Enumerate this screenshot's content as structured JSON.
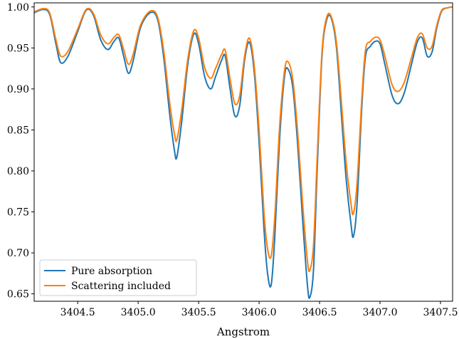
{
  "chart_data": {
    "type": "line",
    "title": "",
    "xlabel": "Angstrom",
    "ylabel": "",
    "xlim": [
      3404.14,
      3407.6
    ],
    "ylim": [
      0.641,
      1.005
    ],
    "xticks": [
      3404.5,
      3405.0,
      3405.5,
      3406.0,
      3406.5,
      3407.0,
      3407.5
    ],
    "xtick_labels": [
      "3404.5",
      "3405.0",
      "3405.5",
      "3406.0",
      "3406.5",
      "3407.0",
      "3407.5"
    ],
    "yticks": [
      0.65,
      0.7,
      0.75,
      0.8,
      0.85,
      0.9,
      0.95,
      1.0
    ],
    "ytick_labels": [
      "0.65",
      "0.70",
      "0.75",
      "0.80",
      "0.85",
      "0.90",
      "0.95",
      "1.00"
    ],
    "grid": false,
    "legend_position": "lower-left",
    "series": [
      {
        "name": "Pure absorption",
        "color": "#1f77b4",
        "x": [
          3404.14,
          3404.22,
          3404.27,
          3404.32,
          3404.36,
          3404.42,
          3404.5,
          3404.57,
          3404.63,
          3404.69,
          3404.75,
          3404.8,
          3404.84,
          3404.88,
          3404.92,
          3404.96,
          3405.02,
          3405.1,
          3405.16,
          3405.21,
          3405.26,
          3405.3,
          3405.32,
          3405.36,
          3405.41,
          3405.46,
          3405.5,
          3405.55,
          3405.6,
          3405.64,
          3405.69,
          3405.72,
          3405.76,
          3405.8,
          3405.84,
          3405.88,
          3405.92,
          3405.96,
          3406.0,
          3406.04,
          3406.07,
          3406.1,
          3406.13,
          3406.17,
          3406.21,
          3406.24,
          3406.28,
          3406.32,
          3406.36,
          3406.4,
          3406.42,
          3406.45,
          3406.48,
          3406.52,
          3406.56,
          3406.6,
          3406.64,
          3406.68,
          3406.72,
          3406.76,
          3406.78,
          3406.81,
          3406.85,
          3406.88,
          3406.92,
          3406.96,
          3407.0,
          3407.04,
          3407.1,
          3407.15,
          3407.2,
          3407.26,
          3407.31,
          3407.35,
          3407.39,
          3407.43,
          3407.47,
          3407.51,
          3407.56,
          3407.6
        ],
        "y": [
          0.993,
          0.997,
          0.99,
          0.955,
          0.932,
          0.94,
          0.97,
          0.996,
          0.99,
          0.96,
          0.948,
          0.958,
          0.962,
          0.94,
          0.919,
          0.935,
          0.975,
          0.993,
          0.985,
          0.94,
          0.87,
          0.825,
          0.817,
          0.86,
          0.93,
          0.967,
          0.955,
          0.915,
          0.9,
          0.915,
          0.935,
          0.94,
          0.9,
          0.867,
          0.88,
          0.935,
          0.957,
          0.92,
          0.835,
          0.73,
          0.675,
          0.661,
          0.72,
          0.84,
          0.915,
          0.924,
          0.9,
          0.83,
          0.74,
          0.66,
          0.646,
          0.68,
          0.8,
          0.94,
          0.985,
          0.985,
          0.95,
          0.87,
          0.79,
          0.735,
          0.72,
          0.76,
          0.88,
          0.94,
          0.952,
          0.958,
          0.955,
          0.93,
          0.892,
          0.882,
          0.895,
          0.93,
          0.958,
          0.962,
          0.94,
          0.945,
          0.975,
          0.995,
          0.999,
          1.0
        ]
      },
      {
        "name": "Scattering included",
        "color": "#ff7f0e",
        "x": [
          3404.14,
          3404.22,
          3404.27,
          3404.32,
          3404.36,
          3404.42,
          3404.5,
          3404.57,
          3404.63,
          3404.69,
          3404.75,
          3404.8,
          3404.84,
          3404.88,
          3404.92,
          3404.96,
          3405.02,
          3405.1,
          3405.16,
          3405.21,
          3405.26,
          3405.3,
          3405.32,
          3405.36,
          3405.41,
          3405.46,
          3405.5,
          3405.55,
          3405.6,
          3405.64,
          3405.69,
          3405.72,
          3405.76,
          3405.8,
          3405.84,
          3405.88,
          3405.92,
          3405.96,
          3406.0,
          3406.04,
          3406.07,
          3406.1,
          3406.13,
          3406.17,
          3406.21,
          3406.24,
          3406.28,
          3406.32,
          3406.36,
          3406.4,
          3406.42,
          3406.45,
          3406.48,
          3406.52,
          3406.56,
          3406.6,
          3406.64,
          3406.68,
          3406.72,
          3406.76,
          3406.78,
          3406.81,
          3406.85,
          3406.88,
          3406.92,
          3406.96,
          3407.0,
          3407.04,
          3407.1,
          3407.15,
          3407.2,
          3407.26,
          3407.31,
          3407.35,
          3407.39,
          3407.43,
          3407.47,
          3407.51,
          3407.56,
          3407.6
        ],
        "y": [
          0.994,
          0.998,
          0.992,
          0.96,
          0.94,
          0.946,
          0.973,
          0.997,
          0.992,
          0.966,
          0.955,
          0.963,
          0.966,
          0.948,
          0.93,
          0.943,
          0.978,
          0.995,
          0.988,
          0.948,
          0.884,
          0.845,
          0.838,
          0.874,
          0.936,
          0.971,
          0.962,
          0.926,
          0.913,
          0.925,
          0.942,
          0.947,
          0.912,
          0.882,
          0.892,
          0.94,
          0.962,
          0.928,
          0.85,
          0.75,
          0.705,
          0.696,
          0.745,
          0.855,
          0.922,
          0.933,
          0.91,
          0.845,
          0.76,
          0.69,
          0.679,
          0.71,
          0.815,
          0.945,
          0.988,
          0.987,
          0.956,
          0.885,
          0.81,
          0.76,
          0.748,
          0.785,
          0.89,
          0.948,
          0.958,
          0.963,
          0.96,
          0.94,
          0.905,
          0.897,
          0.908,
          0.938,
          0.963,
          0.967,
          0.95,
          0.952,
          0.978,
          0.996,
          0.999,
          1.0
        ]
      }
    ]
  }
}
